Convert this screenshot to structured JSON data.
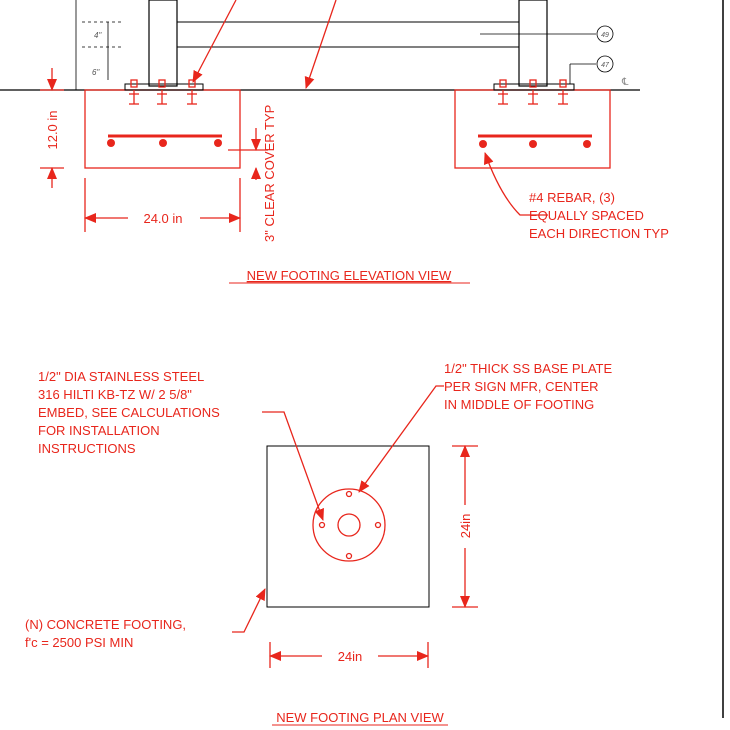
{
  "colors": {
    "markup": "#e8261c",
    "linework": "#000000",
    "background": "#ffffff",
    "dim_text": "#555555"
  },
  "elevation": {
    "dims": {
      "spacing_upper": "4\"",
      "spacing_lower": "6\"",
      "footing_height": "12.0 in",
      "footing_width": "24.0 in",
      "clear_cover": "3\" CLEAR COVER TYP"
    },
    "balloons": {
      "upper": "49",
      "lower": "47"
    },
    "rebar_note": [
      "#4 REBAR, (3)",
      "EQUALLY SPACED",
      "EACH DIRECTION TYP"
    ],
    "title": "NEW FOOTING ELEVATION VIEW"
  },
  "plan": {
    "anchor_note": [
      "1/2\" DIA STAINLESS STEEL",
      "316 HILTI KB-TZ W/ 2 5/8\"",
      "EMBED, SEE CALCULATIONS",
      "FOR INSTALLATION",
      "INSTRUCTIONS"
    ],
    "plate_note": [
      "1/2\" THICK SS BASE PLATE",
      "PER SIGN MFR, CENTER",
      "IN MIDDLE OF FOOTING"
    ],
    "footing_note": [
      "(N) CONCRETE FOOTING,",
      "f'c = 2500 PSI MIN"
    ],
    "dim_vertical": "24in",
    "dim_horizontal": "24in",
    "title": "NEW FOOTING PLAN VIEW"
  }
}
